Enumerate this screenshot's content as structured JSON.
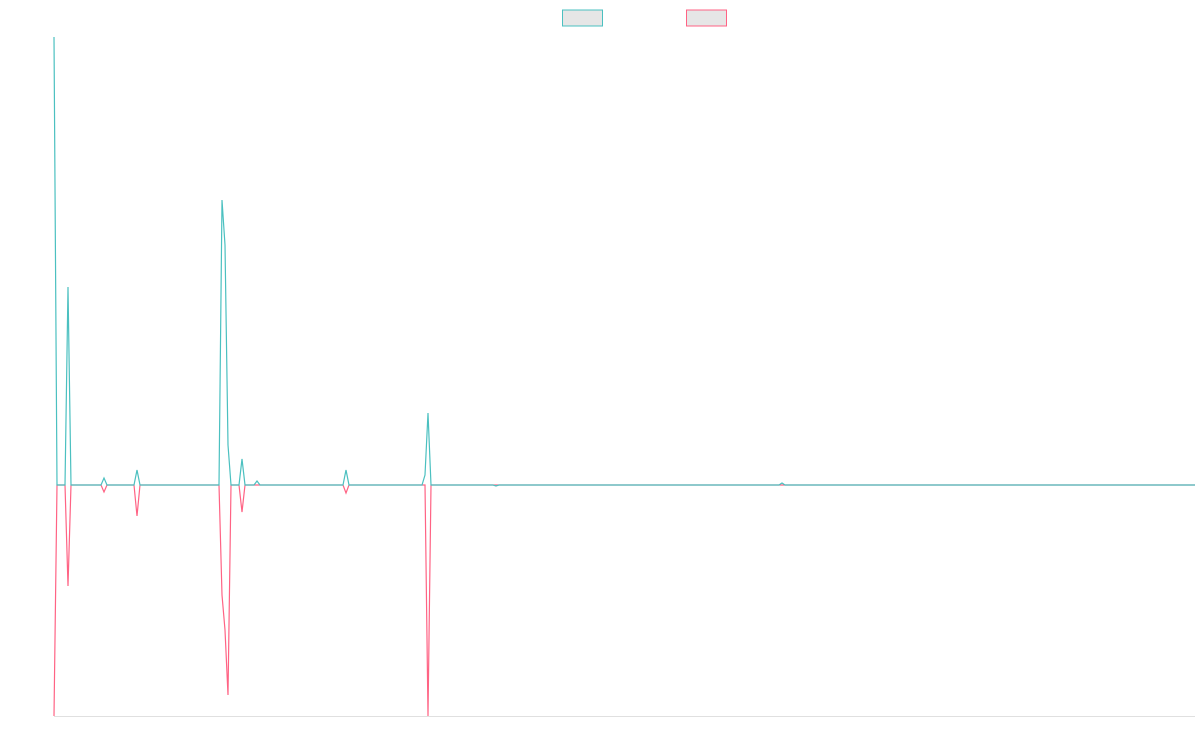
{
  "chart_data": {
    "type": "line",
    "x": [
      0,
      3,
      11,
      14,
      17,
      47,
      50,
      53,
      80,
      83,
      86,
      165,
      168,
      171,
      174,
      177,
      185,
      188,
      191,
      200,
      203,
      206,
      289,
      292,
      295,
      368,
      371,
      374,
      377,
      439,
      442,
      445,
      725,
      728,
      731,
      1141
    ],
    "series": [
      {
        "color": "#ff6384",
        "values": [
          -231,
          0,
          0,
          -101,
          0,
          0,
          -7,
          0,
          0,
          -31,
          0,
          0,
          -110,
          -145,
          -210,
          0,
          0,
          -27,
          0,
          0,
          0,
          0,
          0,
          -8,
          0,
          0,
          0,
          -231,
          0,
          0,
          0,
          0,
          0,
          0,
          0,
          0
        ]
      },
      {
        "color": "#4bc0c0",
        "values": [
          448,
          0,
          0,
          198,
          0,
          0,
          7,
          0,
          0,
          15,
          0,
          0,
          285,
          240,
          40,
          0,
          0,
          26,
          0,
          0,
          4,
          0,
          0,
          15,
          0,
          0,
          10,
          72,
          0,
          0,
          -1,
          0,
          0,
          2,
          0,
          0
        ]
      }
    ],
    "xlim": [
      0,
      1141
    ],
    "ylim": [
      -231,
      448
    ],
    "legend": "top"
  }
}
